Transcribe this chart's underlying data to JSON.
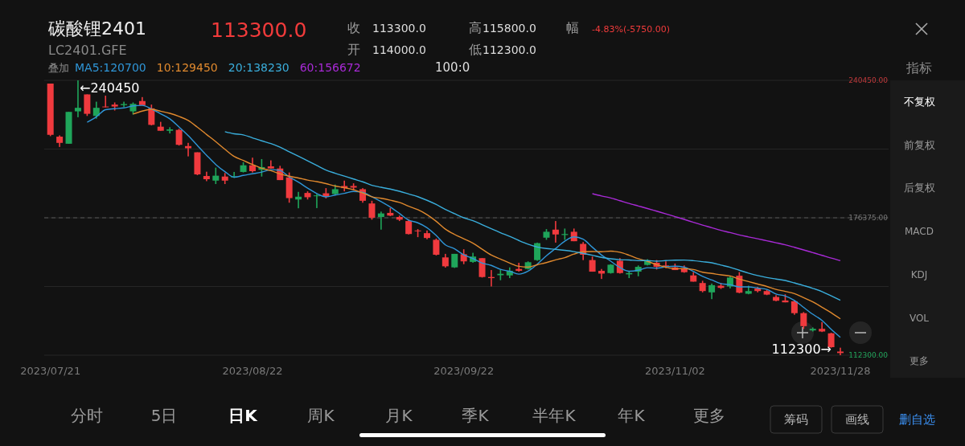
{
  "chart_data": {
    "type": "candlestick",
    "title": "碳酸锂2401",
    "subtitle": "LC2401.GFE",
    "categories": [
      "2023/07/21",
      null,
      null,
      null,
      null,
      null,
      null,
      null,
      null,
      null,
      null,
      null,
      null,
      null,
      null,
      null,
      null,
      null,
      null,
      null,
      null,
      null,
      "2023/08/22",
      null,
      null,
      null,
      null,
      null,
      null,
      null,
      null,
      null,
      null,
      null,
      null,
      null,
      null,
      null,
      null,
      null,
      null,
      null,
      null,
      null,
      null,
      "2023/09/22",
      null,
      null,
      null,
      null,
      null,
      null,
      null,
      null,
      null,
      null,
      null,
      null,
      null,
      null,
      null,
      null,
      null,
      null,
      null,
      null,
      null,
      null,
      "2023/11/02",
      null,
      null,
      null,
      null,
      null,
      null,
      null,
      null,
      null,
      null,
      null,
      null,
      null,
      null,
      null,
      null,
      null,
      "2023/11/28"
    ],
    "ohlc": [
      [
        238950,
        238950,
        214450,
        215050
      ],
      [
        214200,
        214800,
        209400,
        211300
      ],
      [
        210900,
        225750,
        210900,
        225750
      ],
      [
        226000,
        240450,
        223250,
        227650
      ],
      [
        233900,
        233900,
        223850,
        224850
      ],
      [
        223850,
        230500,
        222600,
        227650
      ],
      [
        228250,
        233300,
        227900,
        227900
      ],
      [
        229150,
        230150,
        226400,
        228250
      ],
      [
        228900,
        230500,
        228000,
        229400
      ],
      [
        226000,
        230150,
        224500,
        229500
      ],
      [
        230800,
        232650,
        228900,
        228900
      ],
      [
        227400,
        229150,
        219450,
        219700
      ],
      [
        218850,
        221100,
        216950,
        216950
      ],
      [
        216950,
        218600,
        215700,
        217600
      ],
      [
        217350,
        217850,
        210050,
        210400
      ],
      [
        209800,
        211300,
        205000,
        208800
      ],
      [
        206900,
        206900,
        196250,
        196600
      ],
      [
        195850,
        197850,
        193450,
        194350
      ],
      [
        193700,
        199750,
        192100,
        196000
      ],
      [
        195600,
        197250,
        192100,
        193700
      ],
      [
        195200,
        197750,
        194950,
        195700
      ],
      [
        197750,
        202250,
        197500,
        200850
      ],
      [
        200850,
        204400,
        197500,
        198100
      ],
      [
        198750,
        203750,
        195600,
        200000
      ],
      [
        200350,
        203150,
        199350,
        199350
      ],
      [
        199350,
        200600,
        193950,
        193950
      ],
      [
        195200,
        197500,
        183400,
        185550
      ],
      [
        184900,
        188450,
        180800,
        186200
      ],
      [
        187950,
        188700,
        184900,
        185950
      ],
      [
        186550,
        187450,
        180900,
        186800
      ],
      [
        187800,
        190200,
        185400,
        186200
      ],
      [
        187450,
        191850,
        187200,
        189700
      ],
      [
        191200,
        193700,
        188700,
        190200
      ],
      [
        191200,
        192450,
        189300,
        190450
      ],
      [
        189700,
        190200,
        183400,
        184300
      ],
      [
        183050,
        184300,
        175500,
        176400
      ],
      [
        176750,
        179250,
        170850,
        178400
      ],
      [
        178650,
        180900,
        177150,
        177400
      ],
      [
        176750,
        177400,
        174850,
        175500
      ],
      [
        174850,
        175500,
        168600,
        168800
      ],
      [
        170450,
        171100,
        167350,
        170100
      ],
      [
        169200,
        170450,
        166350,
        166950
      ],
      [
        166100,
        166700,
        158800,
        159150
      ],
      [
        157900,
        159550,
        153150,
        153750
      ],
      [
        153250,
        159550,
        153000,
        159550
      ],
      [
        159400,
        161700,
        154750,
        156050
      ],
      [
        155800,
        160050,
        155400,
        158300
      ],
      [
        157550,
        157550,
        148500,
        148750
      ],
      [
        148750,
        152000,
        144350,
        148250
      ],
      [
        149600,
        152250,
        147250,
        150250
      ],
      [
        149500,
        153250,
        148250,
        151650
      ],
      [
        152500,
        155400,
        151250,
        151650
      ],
      [
        152500,
        156050,
        152250,
        155650
      ],
      [
        156650,
        164800,
        156300,
        164550
      ],
      [
        167100,
        171100,
        166100,
        169850
      ],
      [
        170850,
        174850,
        164800,
        168600
      ],
      [
        168350,
        171350,
        166100,
        168800
      ],
      [
        169850,
        171350,
        165450,
        165450
      ],
      [
        164200,
        165050,
        156650,
        159150
      ],
      [
        156650,
        158300,
        151250,
        151250
      ],
      [
        151650,
        152500,
        147850,
        150350
      ],
      [
        150600,
        154750,
        150350,
        154500
      ],
      [
        156300,
        157550,
        150350,
        150600
      ],
      [
        150000,
        151650,
        148250,
        150600
      ],
      [
        151250,
        154150,
        149100,
        153500
      ],
      [
        154400,
        157050,
        154150,
        156300
      ],
      [
        155400,
        156650,
        152250,
        153500
      ],
      [
        154150,
        156050,
        152900,
        153750
      ],
      [
        153250,
        155000,
        152000,
        152000
      ],
      [
        152900,
        154150,
        150750,
        151000
      ],
      [
        149500,
        151000,
        146600,
        146600
      ],
      [
        145950,
        147000,
        141600,
        142200
      ],
      [
        141600,
        145700,
        138450,
        144950
      ],
      [
        144700,
        145950,
        143200,
        143700
      ],
      [
        144350,
        149100,
        143450,
        148500
      ],
      [
        149350,
        151000,
        141200,
        141450
      ],
      [
        140950,
        144700,
        140700,
        142200
      ],
      [
        143450,
        144100,
        141600,
        142200
      ],
      [
        142200,
        142850,
        140300,
        140550
      ],
      [
        139450,
        140300,
        137450,
        137700
      ],
      [
        137800,
        140700,
        136950,
        136950
      ],
      [
        137450,
        137800,
        131150,
        131900
      ],
      [
        131900,
        132400,
        124600,
        125850
      ],
      [
        123850,
        125250,
        123350,
        124600
      ],
      [
        124600,
        127750,
        123100,
        123350
      ],
      [
        122500,
        122750,
        115800,
        116050
      ],
      [
        114000,
        115800,
        112300,
        113300
      ]
    ],
    "colors": [
      "#f03a3e",
      "#f03a3e",
      "#1fa55a",
      "#1fa55a",
      "#f03a3e",
      "#1fa55a",
      "#f03a3e",
      "#f03a3e",
      "#1fa55a",
      "#1fa55a",
      "#f03a3e",
      "#f03a3e",
      "#f03a3e",
      "#1fa55a",
      "#f03a3e",
      "#f03a3e",
      "#f03a3e",
      "#f03a3e",
      "#1fa55a",
      "#f03a3e",
      "#1fa55a",
      "#1fa55a",
      "#f03a3e",
      "#1fa55a",
      "#f03a3e",
      "#f03a3e",
      "#f03a3e",
      "#1fa55a",
      "#f03a3e",
      "#1fa55a",
      "#f03a3e",
      "#1fa55a",
      "#f03a3e",
      "#f03a3e",
      "#f03a3e",
      "#f03a3e",
      "#1fa55a",
      "#f03a3e",
      "#f03a3e",
      "#f03a3e",
      "#f03a3e",
      "#f03a3e",
      "#f03a3e",
      "#f03a3e",
      "#1fa55a",
      "#f03a3e",
      "#1fa55a",
      "#f03a3e",
      "#f03a3e",
      "#1fa55a",
      "#1fa55a",
      "#f03a3e",
      "#1fa55a",
      "#1fa55a",
      "#1fa55a",
      "#f03a3e",
      "#1fa55a",
      "#f03a3e",
      "#f03a3e",
      "#f03a3e",
      "#f03a3e",
      "#1fa55a",
      "#f03a3e",
      "#1fa55a",
      "#1fa55a",
      "#1fa55a",
      "#f03a3e",
      "#f03a3e",
      "#f03a3e",
      "#f03a3e",
      "#f03a3e",
      "#f03a3e",
      "#1fa55a",
      "#f03a3e",
      "#1fa55a",
      "#f03a3e",
      "#1fa55a",
      "#f03a3e",
      "#f03a3e",
      "#f03a3e",
      "#f03a3e",
      "#f03a3e",
      "#f03a3e",
      "#1fa55a",
      "#f03a3e",
      "#f03a3e",
      "#f03a3e"
    ],
    "series": [
      {
        "type": "line",
        "name": "MA5:120700",
        "color": "#2f96d8",
        "values": [
          null,
          null,
          null,
          null,
          220920,
          223440,
          226760,
          227260,
          227610,
          228540,
          228790,
          227150,
          224890,
          222530,
          218710,
          214690,
          210070,
          205550,
          201230,
          197890,
          195270,
          196120,
          196870,
          197670,
          198800,
          198450,
          195390,
          193010,
          190200,
          187690,
          186140,
          186970,
          187770,
          188670,
          188170,
          186210,
          183950,
          181390,
          178400,
          175300,
          174040,
          171750,
          168100,
          163750,
          161900,
          159090,
          157360,
          155280,
          154180,
          152320,
          151440,
          150110,
          151490,
          154750,
          158670,
          162060,
          165490,
          167450,
          166370,
          162650,
          159000,
          156140,
          153170,
          151460,
          151910,
          153100,
          152900,
          153530,
          153810,
          153310,
          151370,
          149110,
          147350,
          145690,
          145190,
          144160,
          144160,
          143610,
          142980,
          140820,
          139920,
          137860,
          134590,
          131400,
          128530,
          124350,
          120630
        ]
      },
      {
        "type": "line",
        "name": "10:129450",
        "color": "#e0892e",
        "values": [
          null,
          null,
          null,
          null,
          null,
          null,
          null,
          null,
          null,
          224730,
          226120,
          226960,
          226080,
          225070,
          223630,
          221740,
          218610,
          215220,
          211880,
          208300,
          204980,
          203100,
          201210,
          199450,
          198350,
          196860,
          195760,
          194940,
          193940,
          193250,
          192300,
          191180,
          190390,
          189440,
          187930,
          186180,
          185460,
          184580,
          183540,
          181740,
          180130,
          177850,
          174750,
          171080,
          168600,
          166570,
          164560,
          161690,
          158970,
          157110,
          155270,
          153740,
          153390,
          154470,
          155500,
          156750,
          157800,
          159470,
          160560,
          160660,
          160530,
          160820,
          160310,
          158920,
          157280,
          156050,
          154520,
          153350,
          152640,
          152610,
          152240,
          151010,
          150440,
          149750,
          149250,
          147770,
          146640,
          145480,
          144340,
          143000,
          142040,
          141010,
          139100,
          137190,
          134680,
          132140,
          129250
        ]
      },
      {
        "type": "line",
        "name": "20:138230",
        "color": "#3aaedc",
        "values": [
          null,
          null,
          null,
          null,
          null,
          null,
          null,
          null,
          null,
          null,
          null,
          null,
          null,
          null,
          null,
          null,
          null,
          null,
          null,
          216520,
          215550,
          215030,
          213640,
          212260,
          210990,
          209300,
          207180,
          205080,
          202910,
          200770,
          198640,
          197140,
          195800,
          194440,
          193140,
          191520,
          190610,
          189760,
          188740,
          187490,
          186210,
          184520,
          182570,
          180260,
          178270,
          176370,
          175010,
          173140,
          171250,
          169420,
          167700,
          165790,
          164070,
          162770,
          162050,
          161660,
          161180,
          160580,
          159760,
          158890,
          157900,
          157280,
          156850,
          156690,
          156390,
          156400,
          156160,
          156410,
          156600,
          156640,
          156380,
          155910,
          155380,
          154330,
          153270,
          151910,
          150580,
          149420,
          148490,
          147810,
          147140,
          146010,
          144770,
          143470,
          141960,
          139950,
          137940
        ]
      },
      {
        "type": "line",
        "name": "60:156672",
        "color": "#a82ad6",
        "values": [
          null,
          null,
          null,
          null,
          null,
          null,
          null,
          null,
          null,
          null,
          null,
          null,
          null,
          null,
          null,
          null,
          null,
          null,
          null,
          null,
          null,
          null,
          null,
          null,
          null,
          null,
          null,
          null,
          null,
          null,
          null,
          null,
          null,
          null,
          null,
          null,
          null,
          null,
          null,
          null,
          null,
          null,
          null,
          null,
          null,
          null,
          null,
          null,
          null,
          null,
          null,
          null,
          null,
          null,
          null,
          null,
          null,
          null,
          null,
          187630,
          186550,
          185610,
          184350,
          183070,
          181880,
          180690,
          179450,
          178210,
          176920,
          175610,
          174240,
          172950,
          171750,
          170520,
          169480,
          168360,
          167450,
          166590,
          165660,
          164730,
          163750,
          162600,
          161400,
          160140,
          158870,
          157570,
          156370
        ]
      }
    ],
    "ylim": [
      112300,
      240450
    ],
    "yticks": [
      {
        "value": 112300,
        "label": "112300.00"
      },
      {
        "value": 144337.5,
        "label": null
      },
      {
        "value": 176375,
        "label": "176375.00"
      },
      {
        "value": 208412.5,
        "label": null
      },
      {
        "value": 240450,
        "label": "240450.00"
      }
    ],
    "grid": "y",
    "legend": "top left",
    "ref_lines": [
      {
        "axis": "y",
        "value": 176375,
        "line_style": "dashed",
        "color": "#555555"
      }
    ],
    "annotations": [
      "113300.0",
      "收",
      "113300.0",
      "开",
      "114000.0",
      "高",
      "115800.0",
      "低",
      "112300.0",
      "幅",
      "-4.83%(-5750.00)",
      "叠加",
      "100:0",
      "指标",
      "不复权",
      "前复权",
      "后复权",
      "MACD",
      "KDJ",
      "VOL",
      "更多",
      "分时",
      "5日",
      "日K",
      "周K",
      "月K",
      "季K",
      "半年K",
      "年K",
      "更多",
      "筹码",
      "画线",
      "删自选",
      "←240450",
      "112300→"
    ]
  }
}
